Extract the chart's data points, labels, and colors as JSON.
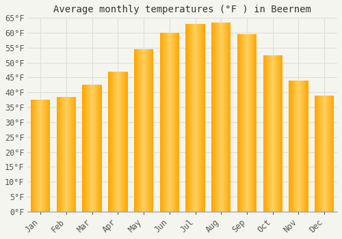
{
  "title": "Average monthly temperatures (°F ) in Beernem",
  "months": [
    "Jan",
    "Feb",
    "Mar",
    "Apr",
    "May",
    "Jun",
    "Jul",
    "Aug",
    "Sep",
    "Oct",
    "Nov",
    "Dec"
  ],
  "values": [
    37.5,
    38.5,
    42.5,
    47.0,
    54.5,
    60.0,
    63.0,
    63.5,
    59.5,
    52.5,
    44.0,
    39.0
  ],
  "bar_color_center": "#FFD060",
  "bar_color_edge": "#FFA500",
  "background_color": "#F5F5F0",
  "plot_bg_color": "#F5F5F0",
  "grid_color": "#DDDDDD",
  "ylim": [
    0,
    65
  ],
  "yticks": [
    0,
    5,
    10,
    15,
    20,
    25,
    30,
    35,
    40,
    45,
    50,
    55,
    60,
    65
  ],
  "title_fontsize": 10,
  "tick_fontsize": 8.5,
  "font_family": "monospace"
}
